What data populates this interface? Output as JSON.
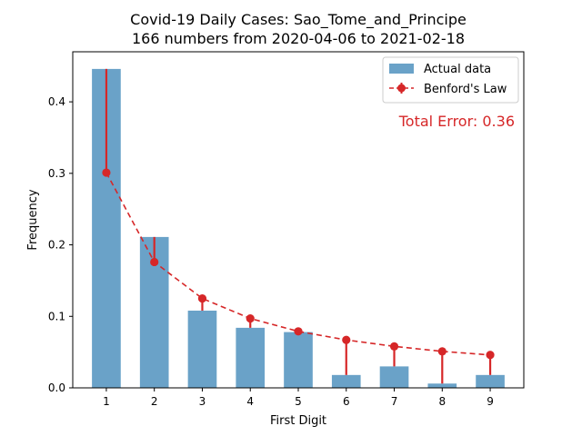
{
  "chart_data": {
    "type": "bar",
    "title_line1": "Covid-19 Daily Cases: Sao_Tome_and_Principe",
    "title_line2": "166 numbers from 2020-04-06 to 2021-02-18",
    "xlabel": "First Digit",
    "ylabel": "Frequency",
    "categories": [
      "1",
      "2",
      "3",
      "4",
      "5",
      "6",
      "7",
      "8",
      "9"
    ],
    "x": [
      1,
      2,
      3,
      4,
      5,
      6,
      7,
      8,
      9
    ],
    "ylim": [
      0,
      0.47
    ],
    "yticks": [
      0.0,
      0.1,
      0.2,
      0.3,
      0.4
    ],
    "ytick_labels": [
      "0.0",
      "0.1",
      "0.2",
      "0.3",
      "0.4"
    ],
    "grid": false,
    "legend_position": "top-right",
    "series": [
      {
        "name": "Actual data",
        "type": "bar",
        "color": "#6aa2c8",
        "values": [
          0.446,
          0.211,
          0.108,
          0.084,
          0.078,
          0.018,
          0.03,
          0.006,
          0.018
        ]
      },
      {
        "name": "Benford's Law",
        "type": "line",
        "style": "dashed",
        "marker": "circle",
        "color": "#d62728",
        "values": [
          0.301,
          0.176,
          0.125,
          0.097,
          0.079,
          0.067,
          0.058,
          0.051,
          0.046
        ]
      }
    ],
    "annotation": {
      "text": "Total Error: 0.36",
      "color": "#d62728",
      "position": "top-right"
    }
  }
}
